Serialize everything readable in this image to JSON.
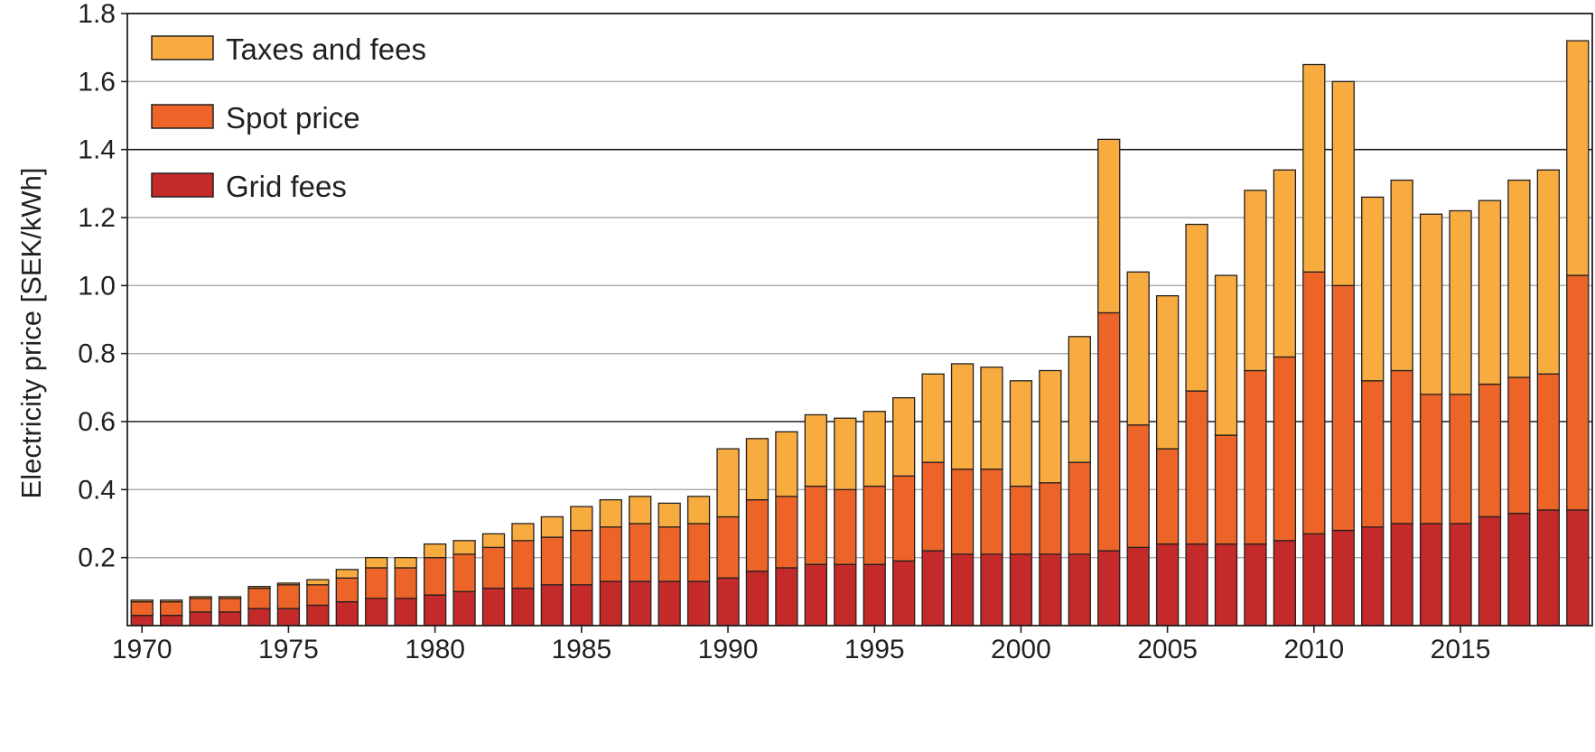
{
  "chart_data": {
    "type": "bar",
    "stacked": true,
    "title": "",
    "xlabel": "",
    "ylabel": "Electricity price [SEK/kWh]",
    "ylim": [
      0,
      1.8
    ],
    "y_ticks": [
      0.2,
      0.4,
      0.6,
      0.8,
      1.0,
      1.2,
      1.4,
      1.6,
      1.8
    ],
    "y_tick_labels": [
      "0.2",
      "0.4",
      "0.6",
      "0.8",
      "1.0",
      "1.2",
      "1.4",
      "1.6",
      "1.8"
    ],
    "x_tick_labels": [
      "1970",
      "1975",
      "1980",
      "1985",
      "1990",
      "1995",
      "2000",
      "2005",
      "2010",
      "2015"
    ],
    "grid": "horizontal",
    "legend_position": "top-left",
    "categories": [
      1970,
      1971,
      1972,
      1973,
      1974,
      1975,
      1976,
      1977,
      1978,
      1979,
      1980,
      1981,
      1982,
      1983,
      1984,
      1985,
      1986,
      1987,
      1988,
      1989,
      1990,
      1991,
      1992,
      1993,
      1994,
      1995,
      1996,
      1997,
      1998,
      1999,
      2000,
      2001,
      2002,
      2003,
      2004,
      2005,
      2006,
      2007,
      2008,
      2009,
      2010,
      2011,
      2012,
      2013,
      2014,
      2015,
      2016,
      2017,
      2018,
      2019
    ],
    "series": [
      {
        "name": "Grid fees",
        "color": "#c52a2a",
        "values": [
          0.03,
          0.03,
          0.04,
          0.04,
          0.05,
          0.05,
          0.06,
          0.07,
          0.08,
          0.08,
          0.09,
          0.1,
          0.11,
          0.11,
          0.12,
          0.12,
          0.13,
          0.13,
          0.13,
          0.13,
          0.14,
          0.16,
          0.17,
          0.18,
          0.18,
          0.18,
          0.19,
          0.22,
          0.21,
          0.21,
          0.21,
          0.21,
          0.21,
          0.22,
          0.23,
          0.24,
          0.24,
          0.24,
          0.24,
          0.25,
          0.27,
          0.28,
          0.29,
          0.3,
          0.3,
          0.3,
          0.32,
          0.33,
          0.34,
          0.34
        ]
      },
      {
        "name": "Spot price",
        "color": "#ec6428",
        "values": [
          0.04,
          0.04,
          0.04,
          0.04,
          0.06,
          0.07,
          0.06,
          0.07,
          0.09,
          0.09,
          0.11,
          0.11,
          0.12,
          0.14,
          0.14,
          0.16,
          0.16,
          0.17,
          0.16,
          0.17,
          0.18,
          0.21,
          0.21,
          0.23,
          0.22,
          0.23,
          0.25,
          0.26,
          0.25,
          0.25,
          0.2,
          0.21,
          0.27,
          0.7,
          0.36,
          0.28,
          0.45,
          0.32,
          0.51,
          0.54,
          0.77,
          0.72,
          0.43,
          0.45,
          0.38,
          0.38,
          0.39,
          0.4,
          0.4,
          0.69
        ]
      },
      {
        "name": "Taxes and fees",
        "color": "#f8ac40",
        "values": [
          0.005,
          0.005,
          0.005,
          0.005,
          0.005,
          0.005,
          0.015,
          0.025,
          0.03,
          0.03,
          0.04,
          0.04,
          0.04,
          0.05,
          0.06,
          0.07,
          0.08,
          0.08,
          0.07,
          0.08,
          0.2,
          0.18,
          0.19,
          0.21,
          0.21,
          0.22,
          0.23,
          0.26,
          0.31,
          0.3,
          0.31,
          0.33,
          0.37,
          0.51,
          0.45,
          0.45,
          0.49,
          0.47,
          0.53,
          0.55,
          0.61,
          0.6,
          0.54,
          0.56,
          0.53,
          0.54,
          0.54,
          0.58,
          0.6,
          0.69
        ]
      }
    ]
  }
}
